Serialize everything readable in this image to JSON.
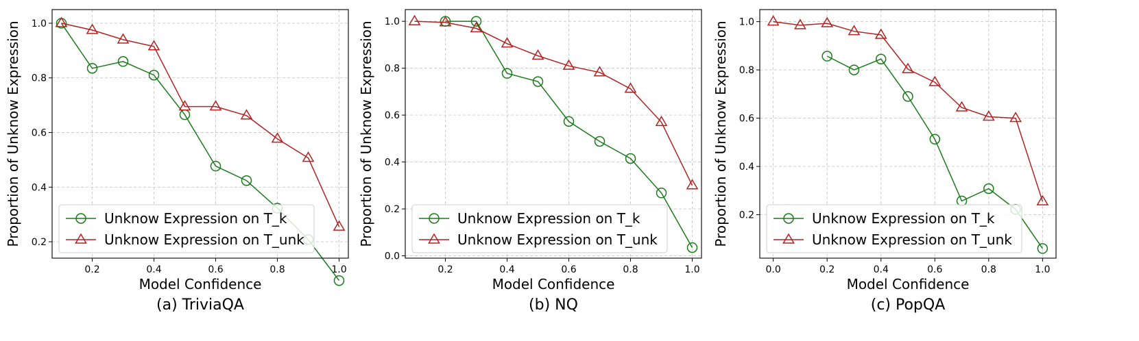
{
  "chart_data": [
    {
      "type": "line",
      "caption": "(a) TriviaQA",
      "xlabel": "Model Confidence",
      "ylabel": "Proportion of Unknow Expression",
      "xlim": [
        0.07,
        1.03
      ],
      "ylim": [
        0.14,
        1.05
      ],
      "xticks": [
        0.2,
        0.4,
        0.6,
        0.8,
        1.0
      ],
      "xtick_labels": [
        "0.2",
        "0.4",
        "0.6",
        "0.8",
        "1.0"
      ],
      "yticks": [
        0.2,
        0.4,
        0.6,
        0.8,
        1.0
      ],
      "ytick_labels": [
        "0.2",
        "0.4",
        "0.6",
        "0.8",
        "1.0"
      ],
      "grid": true,
      "legend_position": "lower-left",
      "series": [
        {
          "name": "Unknow Expression on T_k",
          "color": "#1a7a1a",
          "marker": "circle",
          "x": [
            0.1,
            0.2,
            0.3,
            0.4,
            0.5,
            0.6,
            0.7,
            0.8,
            0.9,
            1.0
          ],
          "y": [
            1.0,
            0.835,
            0.86,
            0.81,
            0.665,
            0.477,
            0.424,
            0.323,
            0.208,
            0.058
          ]
        },
        {
          "name": "Unknow Expression on T_unk",
          "color": "#b22222",
          "marker": "triangle",
          "x": [
            0.1,
            0.2,
            0.3,
            0.4,
            0.5,
            0.6,
            0.7,
            0.8,
            0.9,
            1.0
          ],
          "y": [
            1.0,
            0.975,
            0.94,
            0.915,
            0.695,
            0.695,
            0.662,
            0.577,
            0.507,
            0.255
          ]
        }
      ]
    },
    {
      "type": "line",
      "caption": "(b) NQ",
      "xlabel": "Model Confidence",
      "ylabel": "Proportion of Unknow Expression",
      "xlim": [
        0.07,
        1.03
      ],
      "ylim": [
        -0.01,
        1.05
      ],
      "xticks": [
        0.2,
        0.4,
        0.6,
        0.8,
        1.0
      ],
      "xtick_labels": [
        "0.2",
        "0.4",
        "0.6",
        "0.8",
        "1.0"
      ],
      "yticks": [
        0.0,
        0.2,
        0.4,
        0.6,
        0.8,
        1.0
      ],
      "ytick_labels": [
        "0.0",
        "0.2",
        "0.4",
        "0.6",
        "0.8",
        "1.0"
      ],
      "grid": true,
      "legend_position": "lower-left",
      "series": [
        {
          "name": "Unknow Expression on T_k",
          "color": "#1a7a1a",
          "marker": "circle",
          "x": [
            0.2,
            0.3,
            0.4,
            0.5,
            0.6,
            0.7,
            0.8,
            0.9,
            1.0
          ],
          "y": [
            1.0,
            1.0,
            0.778,
            0.743,
            0.573,
            0.488,
            0.415,
            0.268,
            0.035
          ]
        },
        {
          "name": "Unknow Expression on T_unk",
          "color": "#b22222",
          "marker": "triangle",
          "x": [
            0.1,
            0.2,
            0.3,
            0.4,
            0.5,
            0.6,
            0.7,
            0.8,
            0.9,
            1.0
          ],
          "y": [
            1.0,
            0.995,
            0.97,
            0.905,
            0.853,
            0.81,
            0.782,
            0.712,
            0.57,
            0.3
          ]
        }
      ]
    },
    {
      "type": "line",
      "caption": "(c) PopQA",
      "xlabel": "Model Confidence",
      "ylabel": "Proportion of Unknow Expression",
      "xlim": [
        -0.05,
        1.05
      ],
      "ylim": [
        0.02,
        1.05
      ],
      "xticks": [
        0.0,
        0.2,
        0.4,
        0.6,
        0.8,
        1.0
      ],
      "xtick_labels": [
        "0.0",
        "0.2",
        "0.4",
        "0.6",
        "0.8",
        "1.0"
      ],
      "yticks": [
        0.2,
        0.4,
        0.6,
        0.8,
        1.0
      ],
      "ytick_labels": [
        "0.2",
        "0.4",
        "0.6",
        "0.8",
        "1.0"
      ],
      "grid": true,
      "legend_position": "lower-left",
      "series": [
        {
          "name": "Unknow Expression on T_k",
          "color": "#1a7a1a",
          "marker": "circle",
          "x": [
            0.2,
            0.3,
            0.4,
            0.5,
            0.6,
            0.7,
            0.8,
            0.9,
            1.0
          ],
          "y": [
            0.857,
            0.8,
            0.845,
            0.69,
            0.513,
            0.257,
            0.308,
            0.222,
            0.06
          ]
        },
        {
          "name": "Unknow Expression on T_unk",
          "color": "#b22222",
          "marker": "triangle",
          "x": [
            0.0,
            0.1,
            0.2,
            0.3,
            0.4,
            0.5,
            0.6,
            0.7,
            0.8,
            0.9,
            1.0
          ],
          "y": [
            1.0,
            0.985,
            0.993,
            0.96,
            0.945,
            0.803,
            0.749,
            0.644,
            0.606,
            0.6,
            0.255
          ]
        }
      ]
    }
  ]
}
